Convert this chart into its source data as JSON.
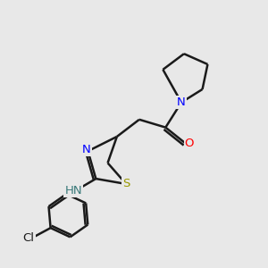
{
  "bg_color": "#e8e8e8",
  "bond_color": "#1a1a1a",
  "atom_colors": {
    "N": "#0000ff",
    "S": "#999900",
    "O": "#ff0000",
    "Cl": "#1a1a1a",
    "C": "#1a1a1a",
    "H": "#3a7a7a",
    "NH": "#3a7a7a"
  },
  "line_width": 1.8,
  "figsize": [
    3.0,
    3.0
  ],
  "dpi": 100
}
